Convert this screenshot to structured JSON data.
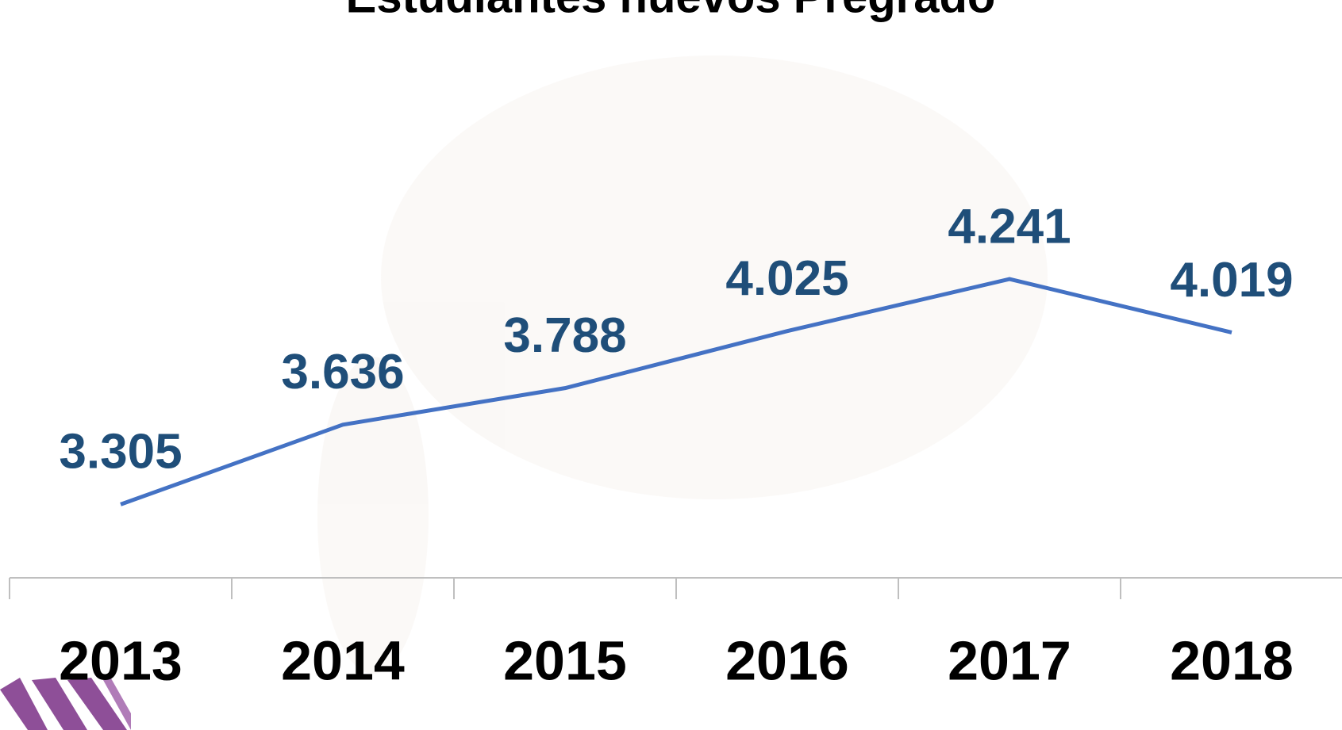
{
  "chart_data": {
    "type": "line",
    "title": "Estudiantes nuevos Pregrado",
    "categories": [
      "2013",
      "2014",
      "2015",
      "2016",
      "2017",
      "2018"
    ],
    "values": [
      3305,
      3636,
      3788,
      4025,
      4241,
      4019
    ],
    "value_labels": [
      "3.305",
      "3.636",
      "3.788",
      "4.025",
      "4.241",
      "4.019"
    ],
    "color": "#4472c4",
    "label_color": "#1f4e79",
    "ylim": [
      3000,
      5400
    ]
  }
}
